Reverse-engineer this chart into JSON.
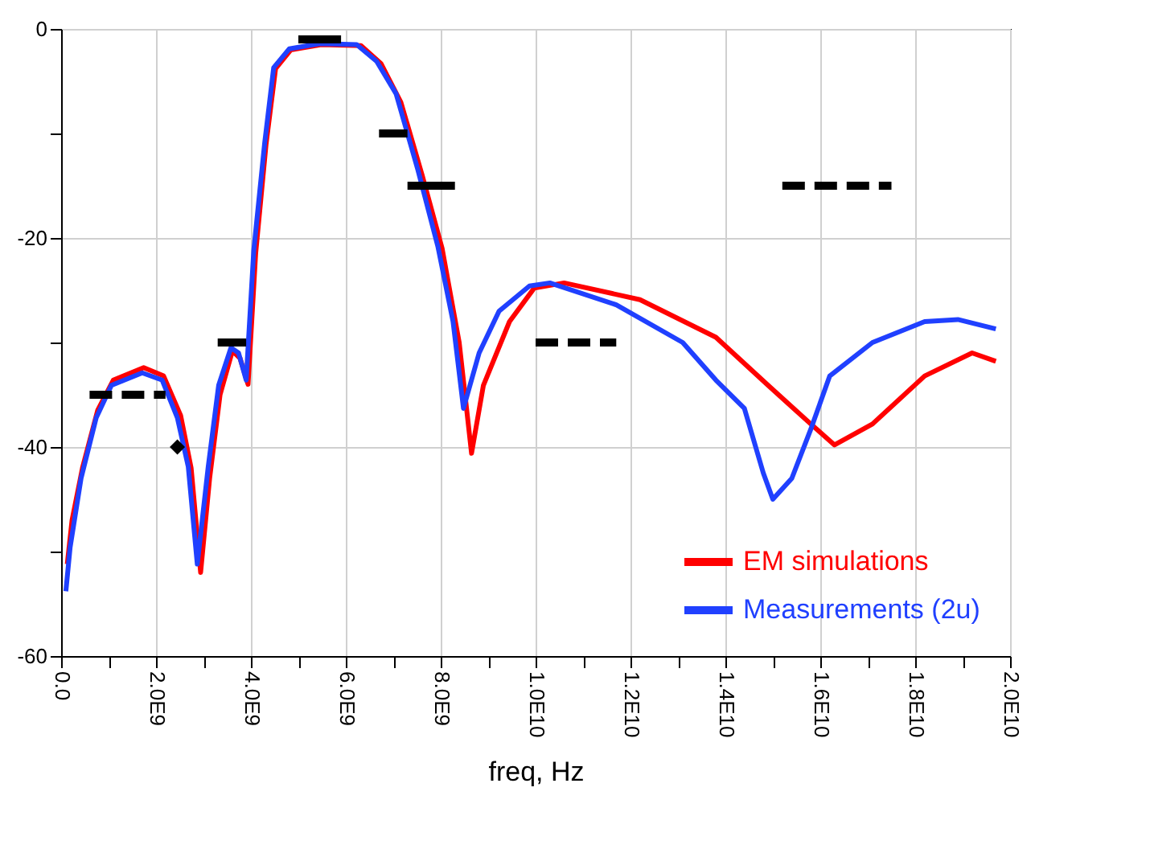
{
  "chart_data": {
    "type": "line",
    "xlabel": "freq, Hz",
    "xlim": [
      0,
      20000000000
    ],
    "xticks": [
      {
        "value": 0,
        "label": "0.0"
      },
      {
        "value": 1000000000,
        "label": null
      },
      {
        "value": 2000000000,
        "label": "2.0E9"
      },
      {
        "value": 3000000000,
        "label": null
      },
      {
        "value": 4000000000,
        "label": "4.0E9"
      },
      {
        "value": 5000000000,
        "label": null
      },
      {
        "value": 6000000000,
        "label": "6.0E9"
      },
      {
        "value": 7000000000,
        "label": null
      },
      {
        "value": 8000000000,
        "label": "8.0E9"
      },
      {
        "value": 9000000000,
        "label": null
      },
      {
        "value": 10000000000,
        "label": "1.0E10"
      },
      {
        "value": 11000000000,
        "label": null
      },
      {
        "value": 12000000000,
        "label": "1.2E10"
      },
      {
        "value": 13000000000,
        "label": null
      },
      {
        "value": 14000000000,
        "label": "1.4E10"
      },
      {
        "value": 15000000000,
        "label": null
      },
      {
        "value": 16000000000,
        "label": "1.6E10"
      },
      {
        "value": 17000000000,
        "label": null
      },
      {
        "value": 18000000000,
        "label": "1.8E10"
      },
      {
        "value": 19000000000,
        "label": null
      },
      {
        "value": 20000000000,
        "label": "2.0E10"
      }
    ],
    "ylim": [
      -60,
      0
    ],
    "yticks": [
      -60,
      {
        "value": -50,
        "label": null
      },
      -40,
      {
        "value": -30,
        "label": null
      },
      -20,
      {
        "value": -10,
        "label": null
      },
      0
    ],
    "grid": true,
    "legend": "bottom right",
    "line_style": "solid",
    "series": [
      {
        "name": "EM simulations",
        "color": "#ff0000",
        "x": [
          130000000.0,
          230000000.0,
          450000000.0,
          770000000.0,
          1100000000.0,
          1740000000.0,
          2160000000.0,
          2520000000.0,
          2740000000.0,
          2940000000.0,
          3130000000.0,
          3350000000.0,
          3610000000.0,
          3770000000.0,
          3940000000.0,
          4100000000.0,
          4320000000.0,
          4520000000.0,
          4840000000.0,
          5480000000.0,
          6320000000.0,
          6740000000.0,
          7160000000.0,
          7610000000.0,
          8030000000.0,
          8390000000.0,
          8650000000.0,
          8900000000.0,
          9450000000.0,
          9970000000.0,
          10600000000.0,
          12200000000.0,
          13800000000.0,
          14900000000.0,
          15800000000.0,
          16300000000.0,
          17100000000.0,
          18200000000.0,
          19200000000.0,
          19700000000.0
        ],
        "values": [
          -51.2,
          -47,
          -42,
          -36.5,
          -33.6,
          -32.4,
          -33.2,
          -37,
          -42,
          -52,
          -43,
          -35,
          -30.8,
          -31.5,
          -34,
          -21.5,
          -11,
          -3.8,
          -2,
          -1.5,
          -1.6,
          -3.3,
          -7,
          -14,
          -21,
          -30,
          -40.6,
          -34.1,
          -28,
          -24.8,
          -24.3,
          -25.9,
          -29.5,
          -34.1,
          -37.8,
          -39.8,
          -37.8,
          -33.2,
          -31,
          -31.8
        ]
      },
      {
        "name": "Measurements (2u)",
        "color": "#2040ff",
        "x": [
          100000000.0,
          190000000.0,
          420000000.0,
          740000000.0,
          1060000000.0,
          1710000000.0,
          2130000000.0,
          2450000000.0,
          2680000000.0,
          2870000000.0,
          3100000000.0,
          3320000000.0,
          3580000000.0,
          3740000000.0,
          3900000000.0,
          4060000000.0,
          4290000000.0,
          4480000000.0,
          4810000000.0,
          5450000000.0,
          6230000000.0,
          6650000000.0,
          7060000000.0,
          7520000000.0,
          7940000000.0,
          8260000000.0,
          8480000000.0,
          8810000000.0,
          9230000000.0,
          9870000000.0,
          10300000000.0,
          11700000000.0,
          13100000000.0,
          13800000000.0,
          14400000000.0,
          14800000000.0,
          15000000000.0,
          15400000000.0,
          15800000000.0,
          16200000000.0,
          17100000000.0,
          18200000000.0,
          18900000000.0,
          19700000000.0
        ],
        "values": [
          -53.8,
          -49.6,
          -43,
          -37.2,
          -34.1,
          -32.9,
          -33.6,
          -37.2,
          -41.9,
          -51.2,
          -41.9,
          -34.1,
          -30.5,
          -31,
          -33.6,
          -21.2,
          -10.9,
          -3.7,
          -1.9,
          -1.4,
          -1.5,
          -3.1,
          -6.2,
          -13.5,
          -20.8,
          -28,
          -36.3,
          -31,
          -27,
          -24.6,
          -24.3,
          -26.4,
          -30,
          -33.6,
          -36.3,
          -42.5,
          -45,
          -43,
          -38.3,
          -33.2,
          -30,
          -28,
          -27.8,
          -28.7
        ]
      },
      {
        "color": "#000000",
        "type": "line",
        "line_style": "dashed",
        "x": [
          600000000.0,
          2200000000.0
        ],
        "values": [
          -35,
          -35
        ]
      },
      {
        "color": "#000000",
        "type": "scatter",
        "marker": "diamond",
        "x": [
          2450000000.0
        ],
        "values": [
          -40
        ]
      },
      {
        "color": "#000000",
        "type": "line",
        "line_style": "solid",
        "x": [
          3300000000.0,
          3900000000.0
        ],
        "values": [
          -30,
          -30
        ]
      },
      {
        "color": "#000000",
        "type": "line",
        "line_style": "solid",
        "x": [
          5000000000.0,
          5900000000.0
        ],
        "values": [
          -1,
          -1
        ]
      },
      {
        "color": "#000000",
        "type": "line",
        "line_style": "solid",
        "x": [
          6700000000.0,
          7300000000.0
        ],
        "values": [
          -10,
          -10
        ]
      },
      {
        "color": "#000000",
        "type": "line",
        "line_style": "solid",
        "x": [
          7300000000.0,
          8300000000.0
        ],
        "values": [
          -15,
          -15
        ]
      },
      {
        "color": "#000000",
        "type": "line",
        "line_style": "dashed",
        "x": [
          10000000000.0,
          11700000000.0
        ],
        "values": [
          -30,
          -30
        ]
      },
      {
        "color": "#000000",
        "type": "line",
        "line_style": "dashed",
        "x": [
          15200000000.0,
          17500000000.0
        ],
        "values": [
          -15,
          -15
        ]
      }
    ]
  }
}
